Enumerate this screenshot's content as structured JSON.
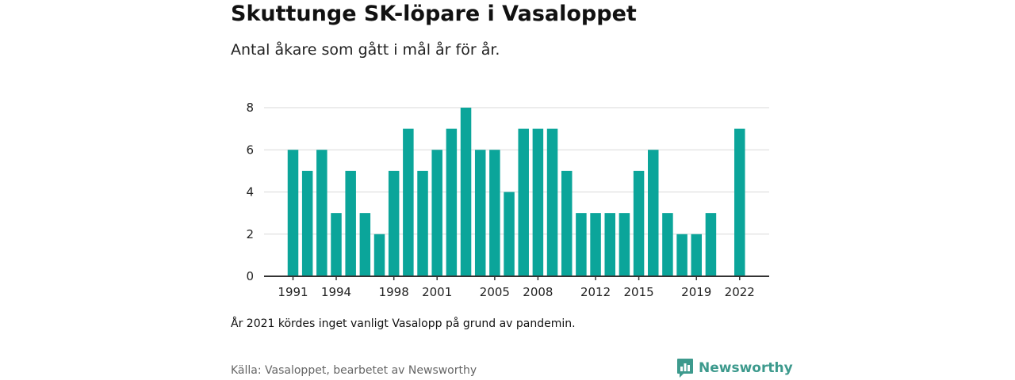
{
  "title": "Skuttunge SK-löpare i Vasaloppet",
  "subtitle": "Antal åkare som gått i mål år för år.",
  "note": "År 2021 kördes inget vanligt Vasalopp på grund av pandemin.",
  "source": "Källa: Vasaloppet, bearbetet av Newsworthy",
  "brand": {
    "name": "Newsworthy",
    "icon": "newsworthy-logo-icon"
  },
  "colors": {
    "bar": "#0ba59a",
    "grid": "#d9d9d9",
    "axis": "#333333"
  },
  "chart_data": {
    "type": "bar",
    "title": "",
    "xlabel": "",
    "ylabel": "",
    "ylim": [
      0,
      8
    ],
    "y_ticks": [
      0,
      2,
      4,
      6,
      8
    ],
    "grid": true,
    "categories": [
      "1991",
      "1992",
      "1993",
      "1994",
      "1995",
      "1996",
      "1997",
      "1998",
      "1999",
      "2000",
      "2001",
      "2002",
      "2003",
      "2004",
      "2005",
      "2006",
      "2007",
      "2008",
      "2009",
      "2010",
      "2011",
      "2012",
      "2013",
      "2014",
      "2015",
      "2016",
      "2017",
      "2018",
      "2019",
      "2020",
      "2021",
      "2022"
    ],
    "values": [
      6,
      5,
      6,
      3,
      5,
      3,
      2,
      5,
      7,
      5,
      6,
      7,
      8,
      6,
      6,
      4,
      7,
      7,
      7,
      5,
      3,
      3,
      3,
      3,
      5,
      6,
      3,
      2,
      2,
      3,
      null,
      7
    ],
    "x_tick_labels": [
      "1991",
      "1994",
      "1998",
      "2001",
      "2005",
      "2008",
      "2012",
      "2015",
      "2019",
      "2022"
    ]
  }
}
